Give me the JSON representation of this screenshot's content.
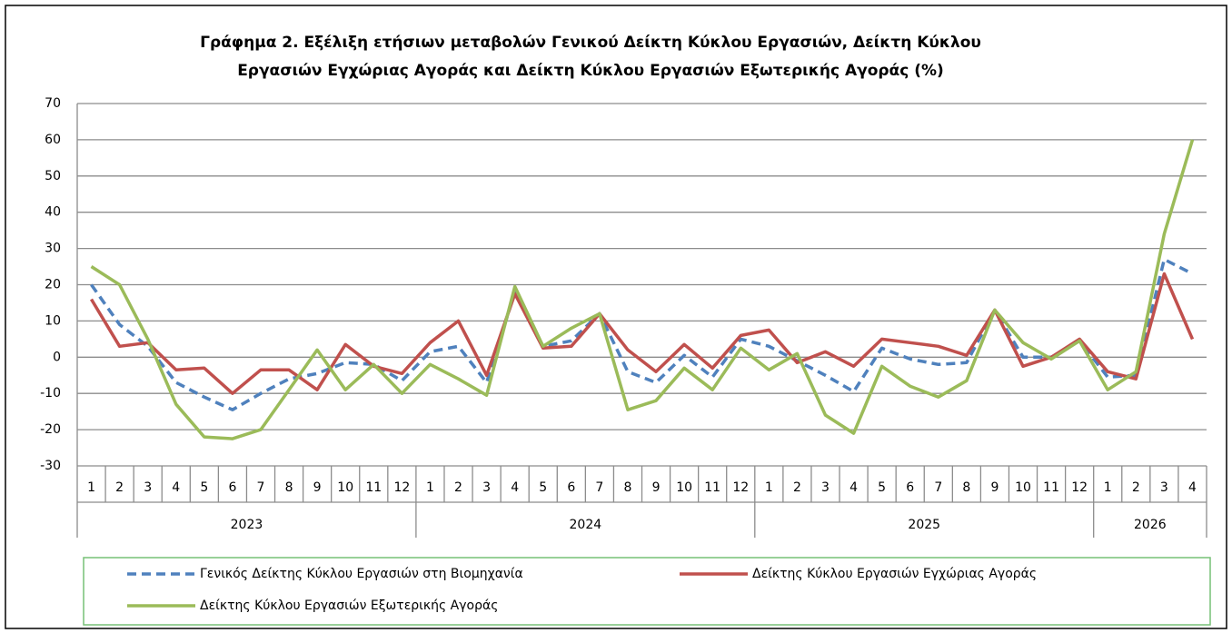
{
  "chart_data": {
    "type": "line",
    "title": [
      "Γράφημα 2. Εξέλιξη ετήσιων μεταβολών Γενικού Δείκτη Κύκλου Εργασιών,  Δείκτη Κύκλου",
      "Εργασιών Εγχώριας Αγοράς και Δείκτη Κύκλου Εργασιών Εξωτερικής Αγοράς  (%)"
    ],
    "category_groups": [
      {
        "name": "2023",
        "categories": [
          "1",
          "2",
          "3",
          "4",
          "5",
          "6",
          "7",
          "8",
          "9",
          "10",
          "11",
          "12"
        ]
      },
      {
        "name": "2024",
        "categories": [
          "1",
          "2",
          "3",
          "4",
          "5",
          "6",
          "7",
          "8",
          "9",
          "10",
          "11",
          "12"
        ]
      },
      {
        "name": "2025",
        "categories": [
          "1",
          "2",
          "3",
          "4",
          "5",
          "6",
          "7",
          "8",
          "9",
          "10",
          "11",
          "12"
        ]
      },
      {
        "name": "2026",
        "categories": [
          "1",
          "2",
          "3",
          "4"
        ]
      }
    ],
    "ylim": [
      -30,
      70
    ],
    "yticks": [
      -30,
      -20,
      -10,
      0,
      10,
      20,
      30,
      40,
      50,
      60,
      70
    ],
    "grid": true,
    "series": [
      {
        "name": "Γενικός Δείκτης Κύκλου Εργασιών στη Βιομηχανία",
        "color": "#4f81bd",
        "dashed": true,
        "values": [
          20,
          9,
          3,
          -7,
          -11,
          -14.5,
          -10,
          -6,
          -4.5,
          -1.5,
          -2,
          -6.5,
          1.5,
          3,
          -7,
          18,
          3,
          4.5,
          12,
          -4,
          -7,
          0.5,
          -5.5,
          5,
          3,
          -1,
          -5,
          -9.5,
          2.5,
          -0.5,
          -2,
          -1.5,
          13,
          0,
          0,
          4.5,
          -5.5,
          -5,
          27,
          23
        ]
      },
      {
        "name": "Δείκτης Κύκλου Εργασιών  Εγχώριας Αγοράς",
        "color": "#c0504d",
        "dashed": false,
        "values": [
          16,
          3,
          4,
          -3.5,
          -3,
          -10,
          -3.5,
          -3.5,
          -9,
          3.5,
          -2.5,
          -4.5,
          4,
          10,
          -5,
          17.5,
          2.5,
          3,
          12,
          2,
          -4,
          3.5,
          -3,
          6,
          7.5,
          -1.5,
          1.5,
          -2.5,
          5,
          4,
          3,
          0.5,
          13,
          -2.5,
          0,
          5,
          -4,
          -6,
          23,
          5
        ]
      },
      {
        "name": "Δείκτης Κύκλου Εργασιών  Εξωτερικής Αγοράς",
        "color": "#9bbb59",
        "dashed": false,
        "values": [
          25,
          20,
          5,
          -13,
          -22,
          -22.5,
          -20,
          -9,
          2,
          -9,
          -2,
          -10,
          -2,
          -6,
          -10.5,
          19.5,
          3,
          8,
          12,
          -14.5,
          -12,
          -3,
          -9,
          2.5,
          -3.5,
          1,
          -16,
          -21,
          -2.5,
          -8,
          -11,
          -6.5,
          13,
          4,
          -0.5,
          4.5,
          -9,
          -4,
          34,
          60
        ]
      }
    ]
  }
}
